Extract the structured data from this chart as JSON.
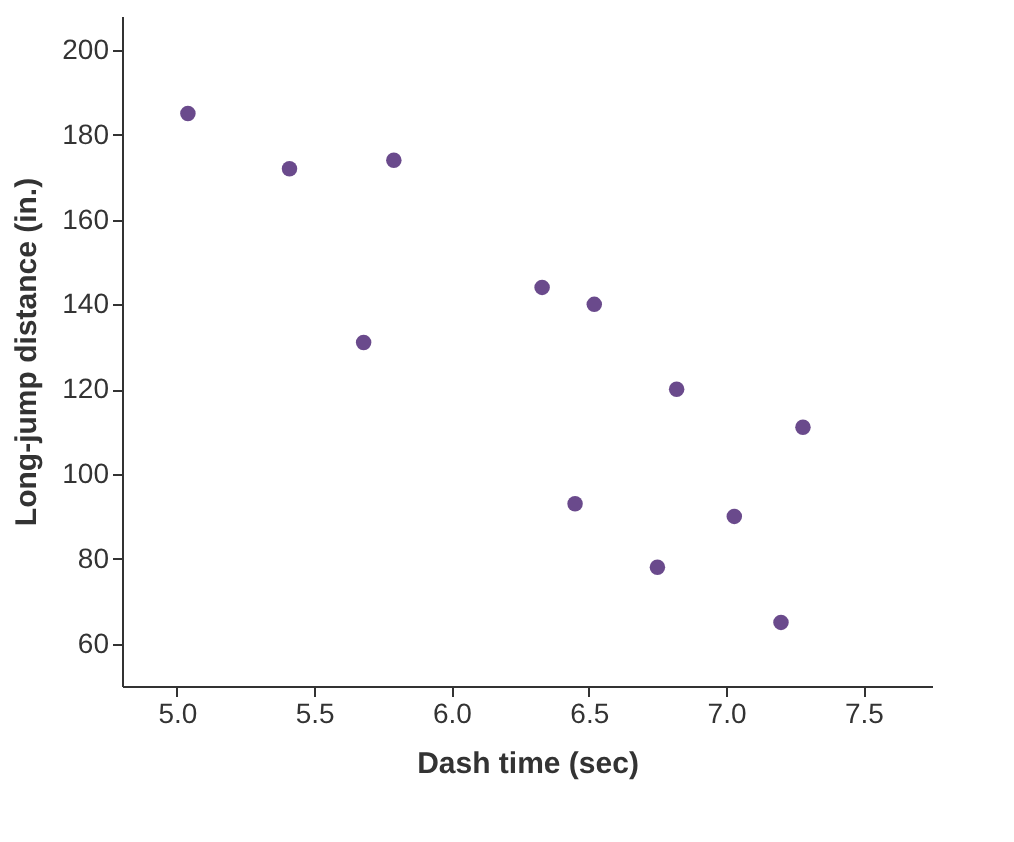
{
  "chart_data": {
    "type": "scatter",
    "xlabel": "Dash time (sec)",
    "ylabel": "Long-jump distance (in.)",
    "x": [
      5.04,
      5.41,
      5.79,
      5.68,
      6.33,
      6.52,
      6.82,
      7.28,
      6.45,
      7.03,
      6.75,
      7.2
    ],
    "values": [
      185,
      172,
      174,
      131,
      144,
      140,
      120,
      111,
      93,
      90,
      78,
      65
    ],
    "color": "#6a4a8c",
    "marker": "circle",
    "xlim": [
      4.8,
      7.75
    ],
    "xticks": [
      {
        "value": 5,
        "label": "5.0"
      },
      {
        "value": 5.5,
        "label": "5.5"
      },
      {
        "value": 6,
        "label": "6.0"
      },
      {
        "value": 6.5,
        "label": "6.5"
      },
      {
        "value": 7,
        "label": "7.0"
      },
      {
        "value": 7.5,
        "label": "7.5"
      }
    ],
    "ylim": [
      50,
      208
    ],
    "yticks": [
      60,
      80,
      100,
      120,
      140,
      160,
      180,
      200
    ],
    "grid": false
  }
}
